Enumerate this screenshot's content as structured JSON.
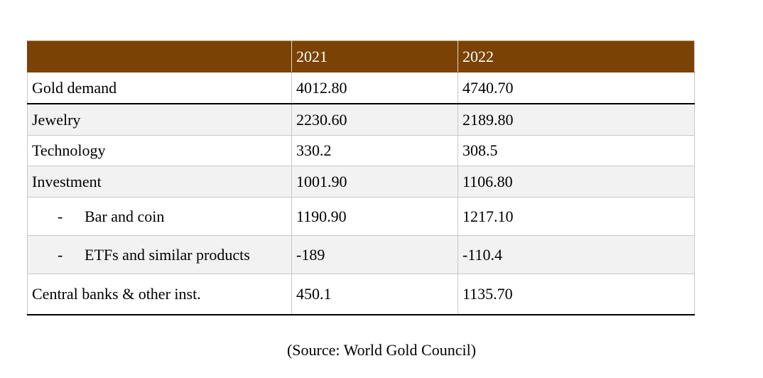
{
  "table": {
    "headers": [
      "",
      "2021",
      "2022"
    ],
    "rows": [
      {
        "label": "Gold demand",
        "v2021": "4012.80",
        "v2022": "4740.70"
      },
      {
        "label": "Jewelry",
        "v2021": "2230.60",
        "v2022": "2189.80"
      },
      {
        "label": "Technology",
        "v2021": "330.2",
        "v2022": "308.5"
      },
      {
        "label": "Investment",
        "v2021": "1001.90",
        "v2022": "1106.80"
      },
      {
        "dash": "-",
        "label": "Bar and coin",
        "v2021": "1190.90",
        "v2022": "1217.10"
      },
      {
        "dash": "-",
        "label": "ETFs and similar products",
        "v2021": "-189",
        "v2022": "-110.4"
      },
      {
        "label": "Central banks & other inst.",
        "v2021": "450.1",
        "v2022": "1135.70"
      }
    ]
  },
  "source": "(Source: World Gold Council)",
  "colors": {
    "header_bg": "#7a4205",
    "header_text": "#ffffff",
    "row_shade": "#f2f2f2"
  }
}
